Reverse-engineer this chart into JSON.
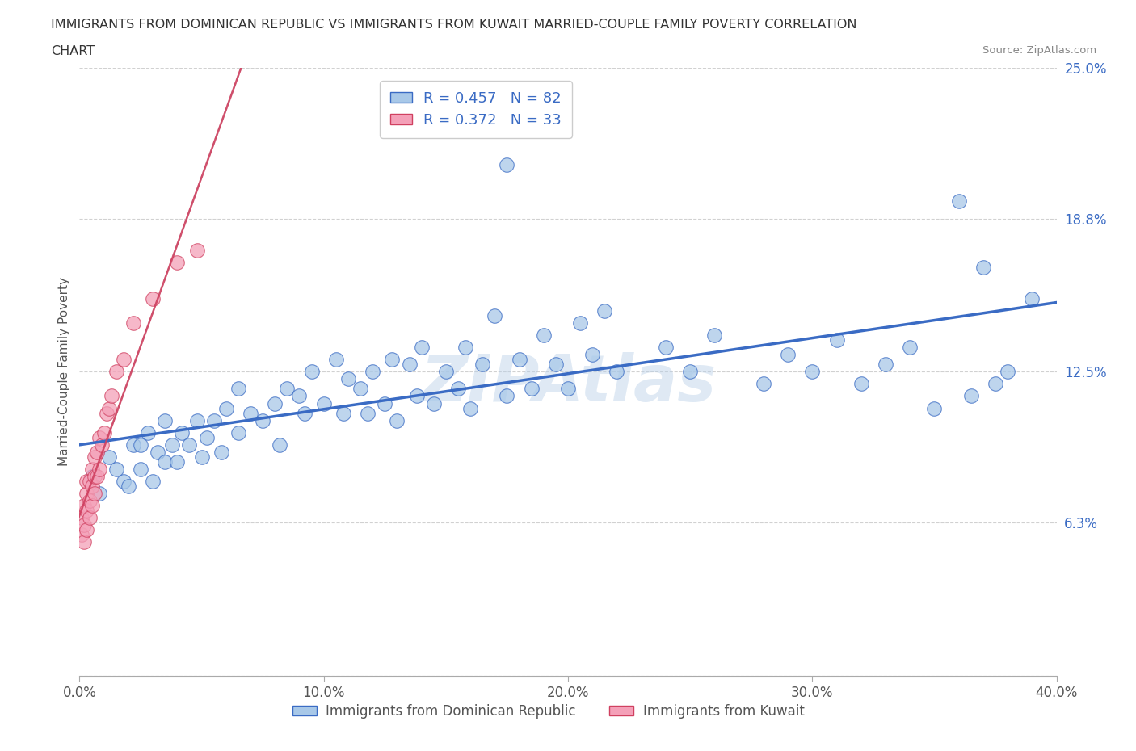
{
  "title_line1": "IMMIGRANTS FROM DOMINICAN REPUBLIC VS IMMIGRANTS FROM KUWAIT MARRIED-COUPLE FAMILY POVERTY CORRELATION",
  "title_line2": "CHART",
  "source_text": "Source: ZipAtlas.com",
  "ylabel": "Married-Couple Family Poverty",
  "xlim": [
    0.0,
    0.4
  ],
  "ylim": [
    0.0,
    0.25
  ],
  "xticks": [
    0.0,
    0.1,
    0.2,
    0.3,
    0.4
  ],
  "xticklabels": [
    "0.0%",
    "10.0%",
    "20.0%",
    "30.0%",
    "40.0%"
  ],
  "yticks": [
    0.0,
    0.063,
    0.125,
    0.188,
    0.25
  ],
  "yticklabels": [
    "",
    "6.3%",
    "12.5%",
    "18.8%",
    "25.0%"
  ],
  "color_blue": "#a8c8e8",
  "color_pink": "#f4a0b8",
  "line_blue": "#3a6bc4",
  "line_pink": "#d04060",
  "legend_blue_R": "0.457",
  "legend_blue_N": "82",
  "legend_pink_R": "0.372",
  "legend_pink_N": "33",
  "watermark": "ZIPAtlas",
  "blue_x": [
    0.005,
    0.008,
    0.012,
    0.015,
    0.018,
    0.02,
    0.022,
    0.025,
    0.025,
    0.028,
    0.03,
    0.032,
    0.035,
    0.035,
    0.038,
    0.04,
    0.042,
    0.045,
    0.048,
    0.05,
    0.052,
    0.055,
    0.058,
    0.06,
    0.065,
    0.065,
    0.07,
    0.075,
    0.08,
    0.082,
    0.085,
    0.09,
    0.092,
    0.095,
    0.1,
    0.105,
    0.108,
    0.11,
    0.115,
    0.118,
    0.12,
    0.125,
    0.128,
    0.13,
    0.135,
    0.138,
    0.14,
    0.145,
    0.15,
    0.155,
    0.158,
    0.16,
    0.165,
    0.17,
    0.175,
    0.175,
    0.18,
    0.185,
    0.19,
    0.195,
    0.2,
    0.205,
    0.21,
    0.215,
    0.22,
    0.24,
    0.25,
    0.26,
    0.28,
    0.29,
    0.3,
    0.31,
    0.32,
    0.33,
    0.34,
    0.35,
    0.36,
    0.365,
    0.37,
    0.375,
    0.38,
    0.39
  ],
  "blue_y": [
    0.082,
    0.075,
    0.09,
    0.085,
    0.08,
    0.078,
    0.095,
    0.085,
    0.095,
    0.1,
    0.08,
    0.092,
    0.088,
    0.105,
    0.095,
    0.088,
    0.1,
    0.095,
    0.105,
    0.09,
    0.098,
    0.105,
    0.092,
    0.11,
    0.1,
    0.118,
    0.108,
    0.105,
    0.112,
    0.095,
    0.118,
    0.115,
    0.108,
    0.125,
    0.112,
    0.13,
    0.108,
    0.122,
    0.118,
    0.108,
    0.125,
    0.112,
    0.13,
    0.105,
    0.128,
    0.115,
    0.135,
    0.112,
    0.125,
    0.118,
    0.135,
    0.11,
    0.128,
    0.148,
    0.115,
    0.21,
    0.13,
    0.118,
    0.14,
    0.128,
    0.118,
    0.145,
    0.132,
    0.15,
    0.125,
    0.135,
    0.125,
    0.14,
    0.12,
    0.132,
    0.125,
    0.138,
    0.12,
    0.128,
    0.135,
    0.11,
    0.195,
    0.115,
    0.168,
    0.12,
    0.125,
    0.155
  ],
  "pink_x": [
    0.001,
    0.001,
    0.002,
    0.002,
    0.002,
    0.003,
    0.003,
    0.003,
    0.003,
    0.004,
    0.004,
    0.004,
    0.005,
    0.005,
    0.005,
    0.006,
    0.006,
    0.006,
    0.007,
    0.007,
    0.008,
    0.008,
    0.009,
    0.01,
    0.011,
    0.012,
    0.013,
    0.015,
    0.018,
    0.022,
    0.03,
    0.04,
    0.048
  ],
  "pink_y": [
    0.058,
    0.065,
    0.055,
    0.062,
    0.07,
    0.06,
    0.068,
    0.075,
    0.08,
    0.065,
    0.072,
    0.08,
    0.07,
    0.078,
    0.085,
    0.075,
    0.082,
    0.09,
    0.082,
    0.092,
    0.085,
    0.098,
    0.095,
    0.1,
    0.108,
    0.11,
    0.115,
    0.125,
    0.13,
    0.145,
    0.155,
    0.17,
    0.175
  ]
}
